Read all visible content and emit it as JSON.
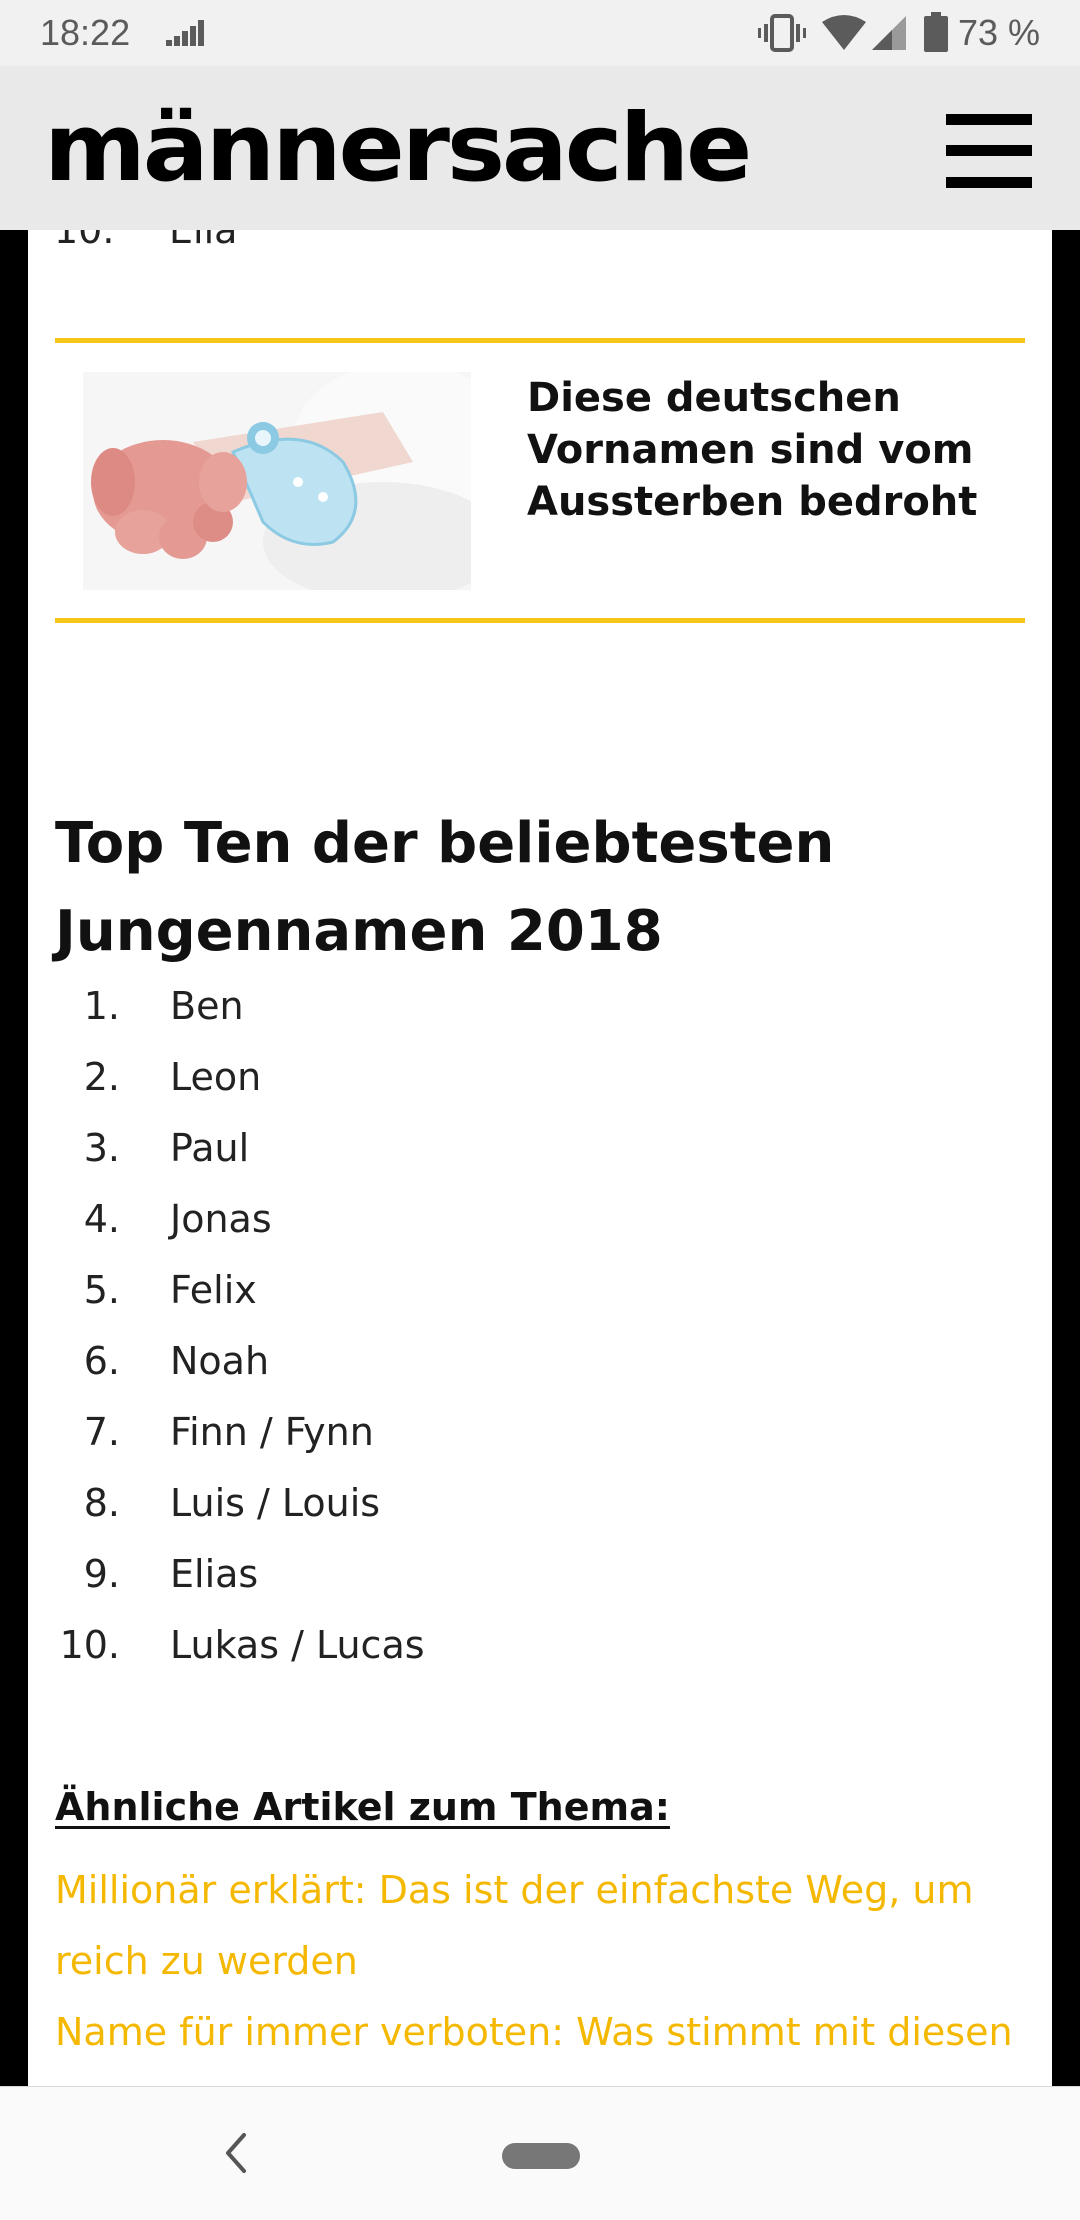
{
  "status_bar": {
    "time": "18:22",
    "battery_percent": "73 %",
    "icons": [
      "signal-bars-icon",
      "vibrate-icon",
      "wifi-icon",
      "cell-signal-icon",
      "battery-icon"
    ]
  },
  "header": {
    "brand": "männersache",
    "menu_icon": "hamburger-menu-icon"
  },
  "previous_list_tail": {
    "number": "10.",
    "name": "Ella"
  },
  "related_card": {
    "title": "Diese deutschen Vornamen sind vom Aussterben bedroht",
    "image": "baby-hand-hospital-bracelet-image",
    "accent_color": "#f5c518"
  },
  "top_ten": {
    "heading": "Top Ten der beliebtesten Jungennamen 2018",
    "items": [
      {
        "number": "1.",
        "name": "Ben"
      },
      {
        "number": "2.",
        "name": "Leon"
      },
      {
        "number": "3.",
        "name": "Paul"
      },
      {
        "number": "4.",
        "name": "Jonas"
      },
      {
        "number": "5.",
        "name": "Felix"
      },
      {
        "number": "6.",
        "name": "Noah"
      },
      {
        "number": "7.",
        "name": "Finn / Fynn"
      },
      {
        "number": "8.",
        "name": "Luis / Louis"
      },
      {
        "number": "9.",
        "name": "Elias"
      },
      {
        "number": "10.",
        "name": "Lukas / Lucas"
      }
    ]
  },
  "related_articles": {
    "heading": "Ähnliche Artikel zum Thema:",
    "links": [
      "Millionär erklärt: Das ist der einfachste Weg, um reich zu werden",
      "Name für immer verboten: Was stimmt mit diesen Eltern nicht?"
    ],
    "link_color": "#f5b800"
  },
  "nav_bar": {
    "back_icon": "back-chevron-icon",
    "home_icon": "home-pill-icon"
  }
}
